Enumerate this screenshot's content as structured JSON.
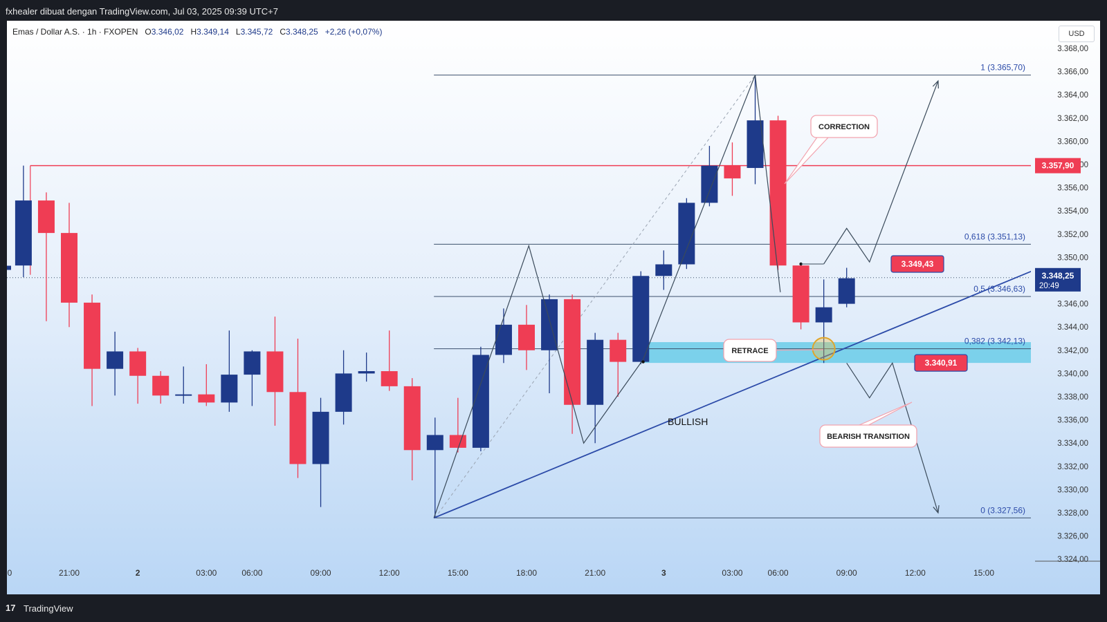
{
  "header": {
    "caption": "fxhealer dibuat dengan TradingView.com, Jul 03, 2025 09:39 UTC+7"
  },
  "legend": {
    "symbol": "Emas / Dollar A.S. · 1h · FXOPEN",
    "open_label": "O",
    "open": "3.346,02",
    "high_label": "H",
    "high": "3.349,14",
    "low_label": "L",
    "low": "3.345,72",
    "close_label": "C",
    "close": "3.348,25",
    "change": "+2,26 (+0,07%)"
  },
  "currency": "USD",
  "footer": {
    "logo": "17",
    "brand": "TradingView"
  },
  "colors": {
    "bull": "#1e3a8a",
    "bear": "#ef3d54",
    "resistance": "#ef3d54",
    "trendline": "#2b4aa8",
    "zone": "#5bc8e6",
    "fib": "#3b4f6b"
  },
  "chart_data": {
    "type": "candlestick",
    "title": "",
    "ylim": [
      3324,
      3368.5
    ],
    "y_ticks": [
      {
        "v": 3368,
        "label": "3.368,00"
      },
      {
        "v": 3366,
        "label": "3.366,00"
      },
      {
        "v": 3364,
        "label": "3.364,00"
      },
      {
        "v": 3362,
        "label": "3.362,00"
      },
      {
        "v": 3360,
        "label": "3.360,00"
      },
      {
        "v": 3358,
        "label": "3.358,00"
      },
      {
        "v": 3356,
        "label": "3.356,00"
      },
      {
        "v": 3354,
        "label": "3.354,00"
      },
      {
        "v": 3352,
        "label": "3.352,00"
      },
      {
        "v": 3350,
        "label": "3.350,00"
      },
      {
        "v": 3346,
        "label": "3.346,00"
      },
      {
        "v": 3344,
        "label": "3.344,00"
      },
      {
        "v": 3342,
        "label": "3.342,00"
      },
      {
        "v": 3340,
        "label": "3.340,00"
      },
      {
        "v": 3338,
        "label": "3.338,00"
      },
      {
        "v": 3336,
        "label": "3.336,00"
      },
      {
        "v": 3334,
        "label": "3.334,00"
      },
      {
        "v": 3332,
        "label": "3.332,00"
      },
      {
        "v": 3330,
        "label": "3.330,00"
      },
      {
        "v": 3328,
        "label": "3.328,00"
      },
      {
        "v": 3326,
        "label": "3.326,00"
      },
      {
        "v": 3324,
        "label": "3.324,00"
      }
    ],
    "x_ticks": [
      {
        "i": -3,
        "label": "0",
        "bold": false
      },
      {
        "i": 0,
        "label": "21:00",
        "bold": false
      },
      {
        "i": 3,
        "label": "2",
        "bold": true
      },
      {
        "i": 6,
        "label": "03:00",
        "bold": false
      },
      {
        "i": 8,
        "label": "06:00",
        "bold": false
      },
      {
        "i": 11,
        "label": "09:00",
        "bold": false
      },
      {
        "i": 14,
        "label": "12:00",
        "bold": false
      },
      {
        "i": 17,
        "label": "15:00",
        "bold": false
      },
      {
        "i": 20,
        "label": "18:00",
        "bold": false
      },
      {
        "i": 23,
        "label": "21:00",
        "bold": false
      },
      {
        "i": 26,
        "label": "3",
        "bold": true
      },
      {
        "i": 29,
        "label": "03:00",
        "bold": false
      },
      {
        "i": 31,
        "label": "06:00",
        "bold": false
      },
      {
        "i": 34,
        "label": "09:00",
        "bold": false
      },
      {
        "i": 37,
        "label": "12:00",
        "bold": false
      },
      {
        "i": 40,
        "label": "15:00",
        "bold": false
      }
    ],
    "candles": [
      {
        "i": -2,
        "o": 3349.3,
        "h": 3357.9,
        "l": 3348.3,
        "c": 3354.9
      },
      {
        "i": -1,
        "o": 3354.9,
        "h": 3355.6,
        "l": 3344.5,
        "c": 3352.1
      },
      {
        "i": 0,
        "o": 3352.1,
        "h": 3354.7,
        "l": 3344.0,
        "c": 3346.1
      },
      {
        "i": 1,
        "o": 3346.1,
        "h": 3346.8,
        "l": 3337.2,
        "c": 3340.4
      },
      {
        "i": 2,
        "o": 3340.4,
        "h": 3343.6,
        "l": 3338.1,
        "c": 3341.9
      },
      {
        "i": 3,
        "o": 3341.9,
        "h": 3342.2,
        "l": 3337.4,
        "c": 3339.8
      },
      {
        "i": 4,
        "o": 3339.8,
        "h": 3340.2,
        "l": 3337.4,
        "c": 3338.1
      },
      {
        "i": 5,
        "o": 3338.1,
        "h": 3340.6,
        "l": 3337.4,
        "c": 3338.2
      },
      {
        "i": 6,
        "o": 3338.2,
        "h": 3340.8,
        "l": 3337.2,
        "c": 3337.5
      },
      {
        "i": 7,
        "o": 3337.5,
        "h": 3343.7,
        "l": 3336.7,
        "c": 3339.9
      },
      {
        "i": 8,
        "o": 3339.9,
        "h": 3342.0,
        "l": 3337.2,
        "c": 3341.9
      },
      {
        "i": 9,
        "o": 3341.9,
        "h": 3344.9,
        "l": 3335.5,
        "c": 3338.4
      },
      {
        "i": 10,
        "o": 3338.4,
        "h": 3343.0,
        "l": 3331.0,
        "c": 3332.2
      },
      {
        "i": 11,
        "o": 3332.2,
        "h": 3337.9,
        "l": 3328.5,
        "c": 3336.7
      },
      {
        "i": 12,
        "o": 3336.7,
        "h": 3342.0,
        "l": 3335.6,
        "c": 3340.0
      },
      {
        "i": 13,
        "o": 3340.0,
        "h": 3341.8,
        "l": 3339.3,
        "c": 3340.2
      },
      {
        "i": 14,
        "o": 3340.2,
        "h": 3343.7,
        "l": 3338.5,
        "c": 3338.9
      },
      {
        "i": 15,
        "o": 3338.9,
        "h": 3339.6,
        "l": 3330.8,
        "c": 3333.4
      },
      {
        "i": 16,
        "o": 3333.4,
        "h": 3336.2,
        "l": 3327.6,
        "c": 3334.7
      },
      {
        "i": 17,
        "o": 3334.7,
        "h": 3337.9,
        "l": 3333.2,
        "c": 3333.6
      },
      {
        "i": 18,
        "o": 3333.6,
        "h": 3342.3,
        "l": 3333.3,
        "c": 3341.6
      },
      {
        "i": 19,
        "o": 3341.6,
        "h": 3345.6,
        "l": 3340.9,
        "c": 3344.2
      },
      {
        "i": 20,
        "o": 3344.2,
        "h": 3345.9,
        "l": 3340.3,
        "c": 3342.0
      },
      {
        "i": 21,
        "o": 3342.0,
        "h": 3346.8,
        "l": 3338.3,
        "c": 3346.4
      },
      {
        "i": 22,
        "o": 3346.4,
        "h": 3346.8,
        "l": 3334.8,
        "c": 3337.3
      },
      {
        "i": 23,
        "o": 3337.3,
        "h": 3343.5,
        "l": 3334.0,
        "c": 3342.9
      },
      {
        "i": 24,
        "o": 3342.9,
        "h": 3343.5,
        "l": 3338.0,
        "c": 3341.0
      },
      {
        "i": 25,
        "o": 3341.0,
        "h": 3348.8,
        "l": 3340.8,
        "c": 3348.4
      },
      {
        "i": 26,
        "o": 3348.4,
        "h": 3350.6,
        "l": 3347.2,
        "c": 3349.4
      },
      {
        "i": 27,
        "o": 3349.4,
        "h": 3355.1,
        "l": 3349.0,
        "c": 3354.7
      },
      {
        "i": 28,
        "o": 3354.7,
        "h": 3359.6,
        "l": 3354.4,
        "c": 3357.9
      },
      {
        "i": 29,
        "o": 3357.9,
        "h": 3359.9,
        "l": 3355.3,
        "c": 3356.8
      },
      {
        "i": 30,
        "o": 3357.7,
        "h": 3365.7,
        "l": 3356.3,
        "c": 3361.8
      },
      {
        "i": 31,
        "o": 3361.8,
        "h": 3362.2,
        "l": 3348.9,
        "c": 3349.3
      },
      {
        "i": 32,
        "o": 3349.3,
        "h": 3349.4,
        "l": 3343.8,
        "c": 3344.4
      },
      {
        "i": 33,
        "o": 3344.4,
        "h": 3348.1,
        "l": 3340.9,
        "c": 3345.7
      },
      {
        "i": 34,
        "o": 3346.0,
        "h": 3349.1,
        "l": 3345.7,
        "c": 3348.2
      }
    ],
    "fib_levels": [
      {
        "ratio": "1",
        "value": 3365.7,
        "label": "1 (3.365,70)"
      },
      {
        "ratio": "0,618",
        "value": 3351.13,
        "label": "0,618 (3.351,13)"
      },
      {
        "ratio": "0,5",
        "value": 3346.63,
        "label": "0,5 (3.346,63)"
      },
      {
        "ratio": "0,382",
        "value": 3342.13,
        "label": "0,382 (3.342,13)"
      },
      {
        "ratio": "0",
        "value": 3327.56,
        "label": "0 (3.327,56)"
      }
    ],
    "resistance": {
      "value": 3357.9,
      "label": "3.357,90"
    },
    "current_price": {
      "value": 3348.25,
      "label": "3.348,25",
      "countdown": "20:49"
    },
    "zone": {
      "top": 3342.7,
      "bottom": 3340.91
    },
    "price_labels": [
      {
        "value": 3349.43,
        "label": "3.349,43"
      },
      {
        "value": 3340.91,
        "label": "3.340,91"
      }
    ],
    "trendline": {
      "x1": 15.95,
      "y1": 3327.56,
      "x2": 42.2,
      "y2": 3348.9
    },
    "zigzag": [
      [
        15.95,
        3327.56
      ],
      [
        20.1,
        3351.0
      ],
      [
        22.5,
        3334.0
      ],
      [
        25.1,
        3341.2
      ],
      [
        30.0,
        3365.7
      ],
      [
        31.1,
        3347.0
      ]
    ],
    "projection_up": [
      [
        33.0,
        3349.43
      ],
      [
        34.0,
        3352.5
      ],
      [
        35.0,
        3349.6
      ],
      [
        38.0,
        3365.2
      ]
    ],
    "projection_down": [
      [
        34.0,
        3340.9
      ],
      [
        35.0,
        3337.9
      ],
      [
        36.0,
        3340.9
      ],
      [
        38.0,
        3328.0
      ]
    ],
    "annotations": [
      {
        "text": "CORRECTION",
        "style": "callout"
      },
      {
        "text": "RETRACE",
        "style": "callout"
      },
      {
        "text": "BEARISH TRANSITION",
        "style": "callout"
      },
      {
        "text": "BULLISH",
        "style": "plain"
      }
    ]
  }
}
